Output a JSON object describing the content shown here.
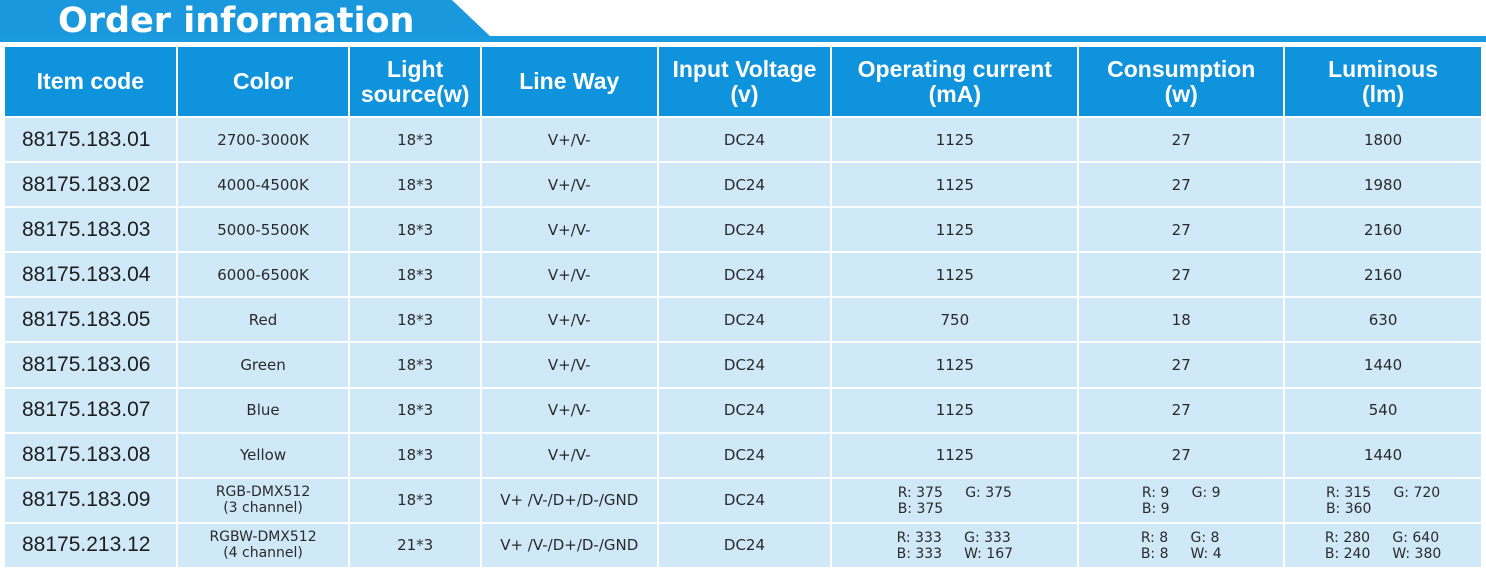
{
  "title": "Order information",
  "columns": [
    "Item code",
    "Color",
    "Light source(w)",
    "Line Way",
    "Input Voltage (v)",
    "Operating current (mA)",
    "Consumption (w)",
    "Luminous (lm)"
  ],
  "header_lines": {
    "item_code": "Item code",
    "color": "Color",
    "light_1": "Light",
    "light_2": "source(w)",
    "line_way": "Line Way",
    "voltage_1": "Input Voltage",
    "voltage_2": "(v)",
    "current_1": "Operating current",
    "current_2": "(mA)",
    "consumption_1": "Consumption",
    "consumption_2": "(w)",
    "luminous_1": "Luminous",
    "luminous_2": "(lm)"
  },
  "rows": [
    {
      "code": "88175.183.01",
      "color": "2700-3000K",
      "light": "18*3",
      "line": "V+/V-",
      "voltage": "DC24",
      "current": "1125",
      "consumption": "27",
      "luminous": "1800"
    },
    {
      "code": "88175.183.02",
      "color": "4000-4500K",
      "light": "18*3",
      "line": "V+/V-",
      "voltage": "DC24",
      "current": "1125",
      "consumption": "27",
      "luminous": "1980"
    },
    {
      "code": "88175.183.03",
      "color": "5000-5500K",
      "light": "18*3",
      "line": "V+/V-",
      "voltage": "DC24",
      "current": "1125",
      "consumption": "27",
      "luminous": "2160"
    },
    {
      "code": "88175.183.04",
      "color": "6000-6500K",
      "light": "18*3",
      "line": "V+/V-",
      "voltage": "DC24",
      "current": "1125",
      "consumption": "27",
      "luminous": "2160"
    },
    {
      "code": "88175.183.05",
      "color": "Red",
      "light": "18*3",
      "line": "V+/V-",
      "voltage": "DC24",
      "current": "750",
      "consumption": "18",
      "luminous": "630"
    },
    {
      "code": "88175.183.06",
      "color": "Green",
      "light": "18*3",
      "line": "V+/V-",
      "voltage": "DC24",
      "current": "1125",
      "consumption": "27",
      "luminous": "1440"
    },
    {
      "code": "88175.183.07",
      "color": "Blue",
      "light": "18*3",
      "line": "V+/V-",
      "voltage": "DC24",
      "current": "1125",
      "consumption": "27",
      "luminous": "540"
    },
    {
      "code": "88175.183.08",
      "color": "Yellow",
      "light": "18*3",
      "line": "V+/V-",
      "voltage": "DC24",
      "current": "1125",
      "consumption": "27",
      "luminous": "1440"
    },
    {
      "code": "88175.183.09",
      "color_1": "RGB-DMX512",
      "color_2": "(3 channel)",
      "light": "18*3",
      "line": "V+ /V-/D+/D-/GND",
      "voltage": "DC24",
      "current": [
        "R: 375",
        "G: 375",
        "B: 375"
      ],
      "consumption": [
        "R: 9",
        "G: 9",
        "B: 9"
      ],
      "luminous": [
        "R: 315",
        "G: 720",
        "B: 360"
      ]
    },
    {
      "code": "88175.213.12",
      "color_1": "RGBW-DMX512",
      "color_2": "(4 channel)",
      "light": "21*3",
      "line": "V+ /V-/D+/D-/GND",
      "voltage": "DC24",
      "current": [
        "R: 333",
        "G: 333",
        "B: 333",
        "W: 167"
      ],
      "consumption": [
        "R: 8",
        "G: 8",
        "B: 8",
        "W: 4"
      ],
      "luminous": [
        "R: 280",
        "G: 640",
        "B: 240",
        "W: 380"
      ]
    }
  ],
  "colors": {
    "header_blue": "#0e93dc",
    "cell_blue": "#cfe9f8",
    "title_blue": "#1b9be0"
  }
}
